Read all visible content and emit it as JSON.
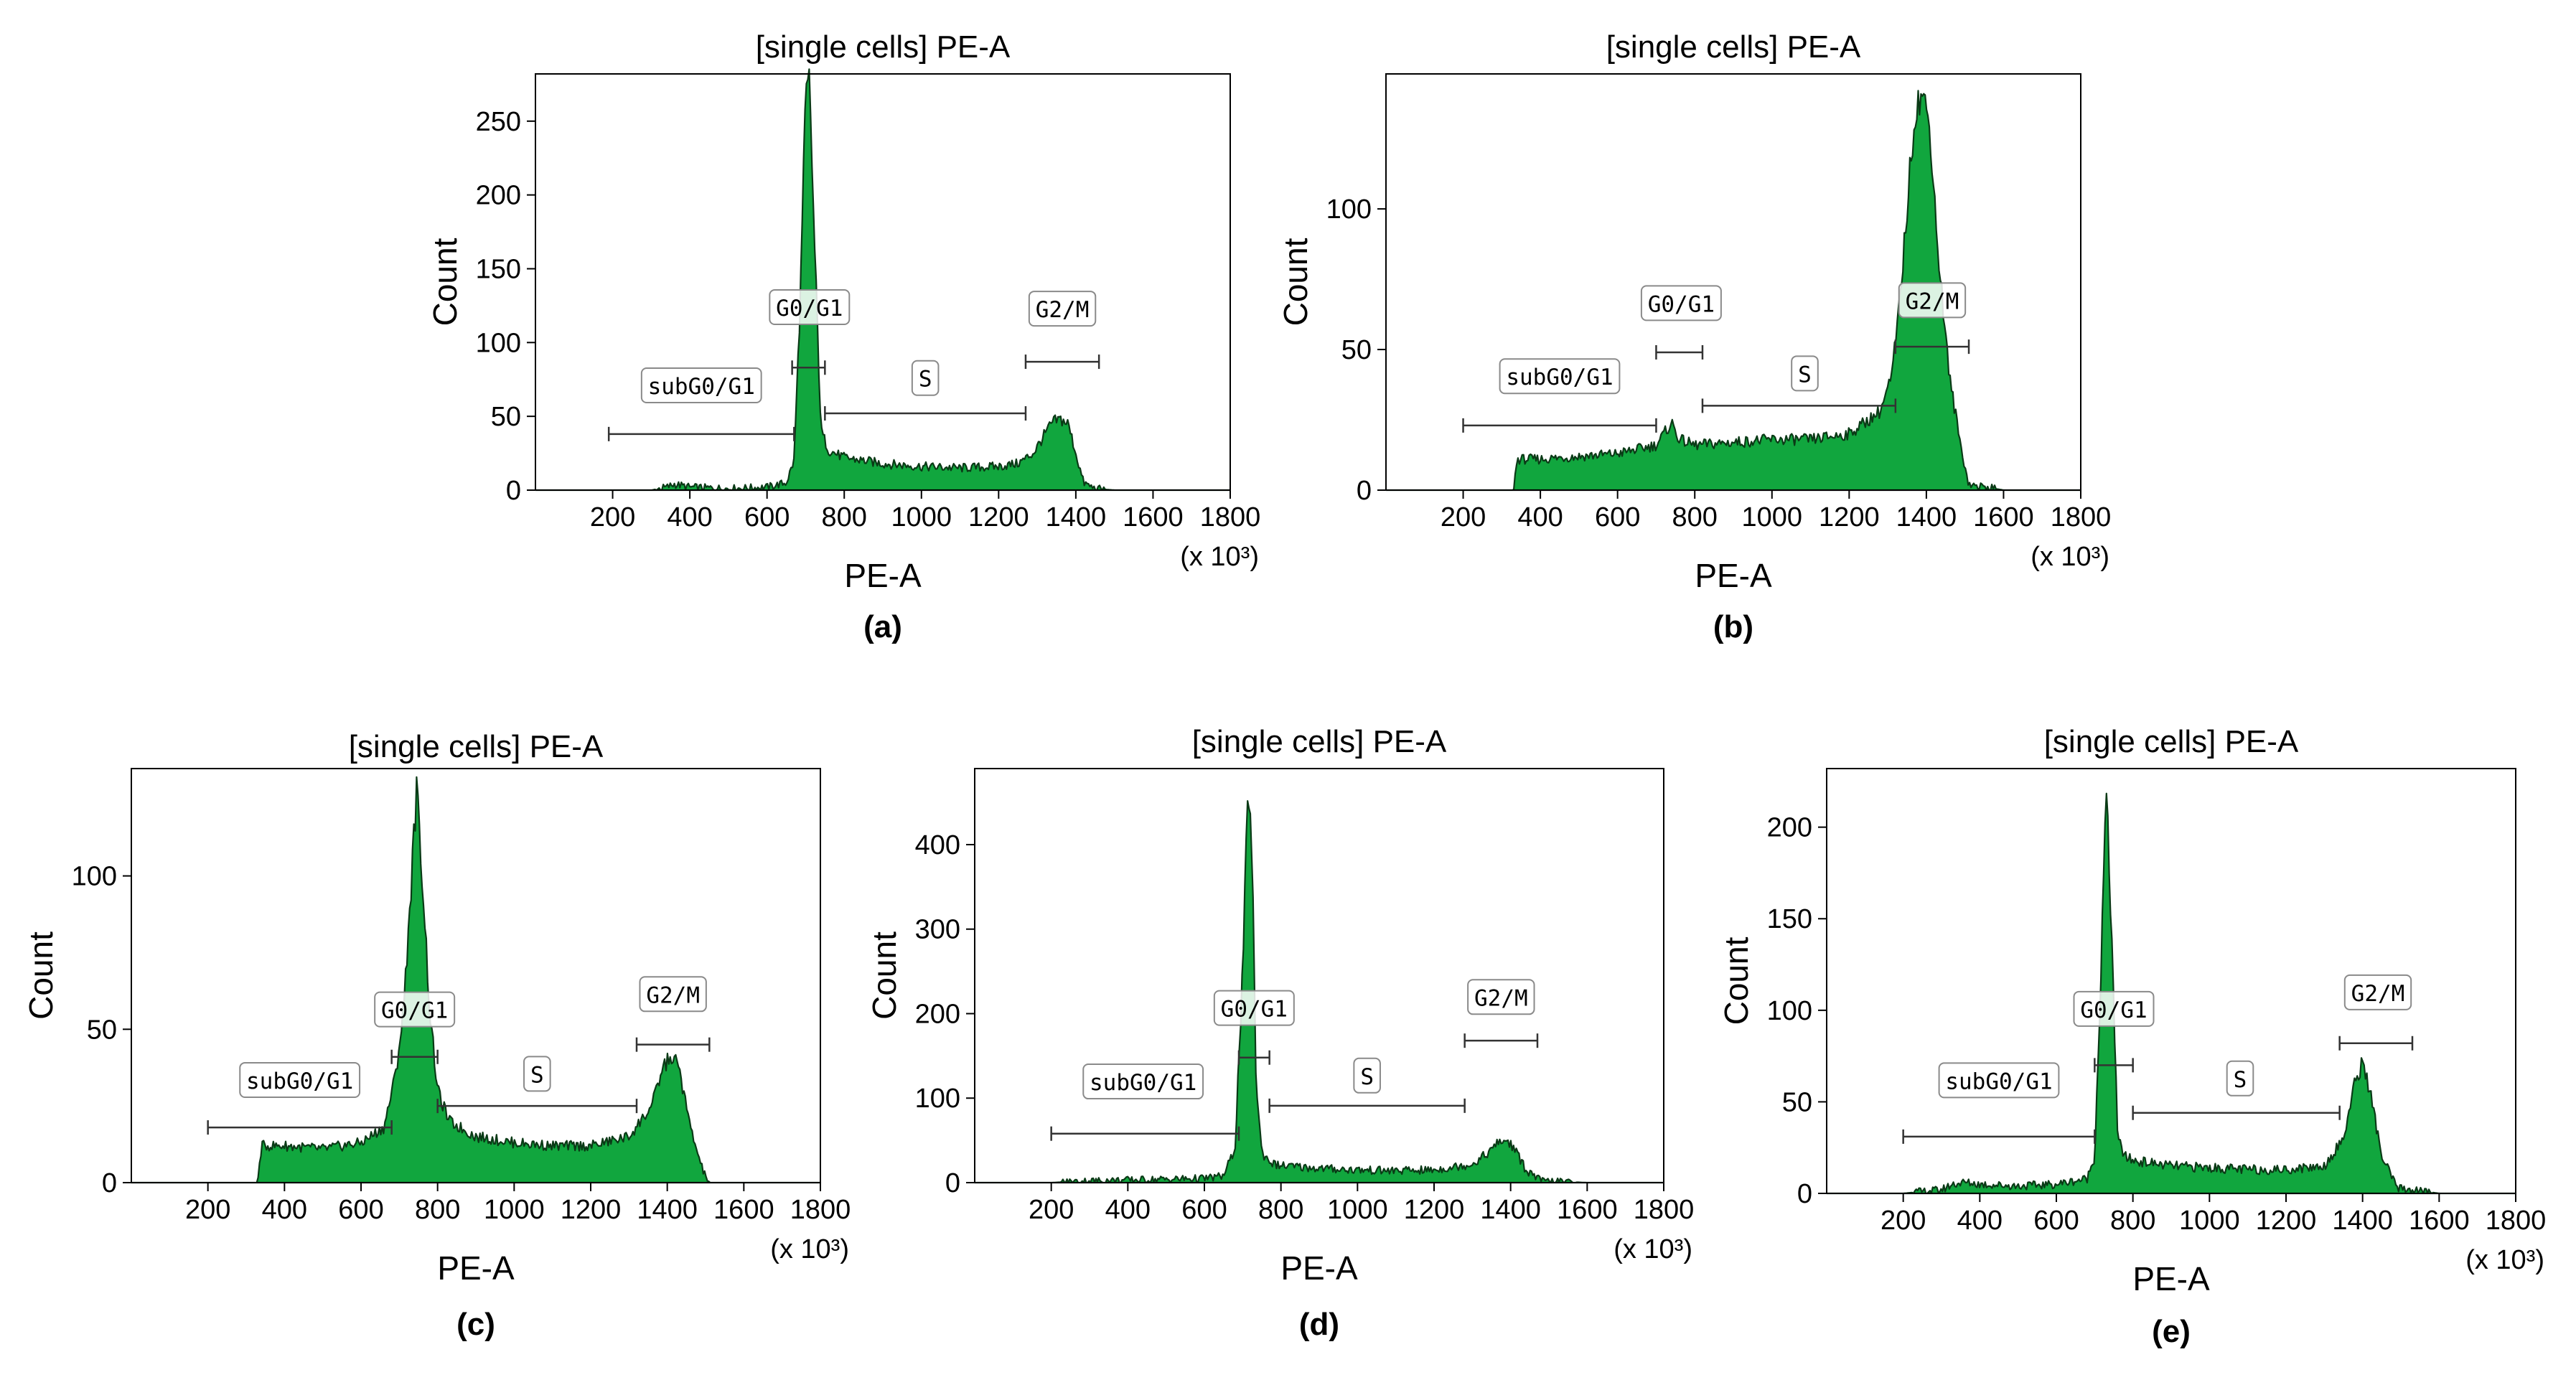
{
  "figure": {
    "panels": [
      {
        "letter": "(a)",
        "chart_data": {
          "type": "area",
          "title": "[single cells] PE-A",
          "xlabel": "PE-A",
          "ylabel": "Count",
          "x_multiplier": "(x 10³)",
          "xlim": [
            0,
            1800
          ],
          "ylim": [
            0,
            282
          ],
          "x_ticks": [
            200,
            400,
            600,
            800,
            1000,
            1200,
            1400,
            1600,
            1800
          ],
          "y_ticks": [
            0,
            50,
            100,
            150,
            200,
            250
          ],
          "fill_color": "#11a63e",
          "outline_color": "#0a3a16",
          "histogram": {
            "x": [
              0,
              100,
              200,
              300,
              340,
              360,
              380,
              400,
              500,
              600,
              650,
              670,
              685,
              700,
              710,
              720,
              740,
              760,
              800,
              900,
              1000,
              1100,
              1200,
              1250,
              1290,
              1320,
              1340,
              1360,
              1380,
              1400,
              1420,
              1450,
              1500,
              1600,
              1800
            ],
            "count": [
              0,
              0,
              0,
              0,
              2,
              4,
              3,
              2,
              1,
              2,
              5,
              20,
              120,
              265,
              278,
              190,
              40,
              27,
              22,
              18,
              16,
              15,
              16,
              18,
              25,
              38,
              46,
              48,
              45,
              25,
              5,
              1,
              0,
              0,
              0
            ]
          },
          "gates": [
            {
              "name": "subG0/G1",
              "x_start": 190,
              "x_end": 670,
              "y": 38,
              "label_x": 430,
              "label_y": 70
            },
            {
              "name": "G0/G1",
              "x_start": 665,
              "x_end": 750,
              "y": 83,
              "label_x": 710,
              "label_y": 123
            },
            {
              "name": "S",
              "x_start": 750,
              "x_end": 1270,
              "y": 52,
              "label_x": 1010,
              "label_y": 75
            },
            {
              "name": "G2/M",
              "x_start": 1270,
              "x_end": 1460,
              "y": 87,
              "label_x": 1365,
              "label_y": 122
            }
          ]
        }
      },
      {
        "letter": "(b)",
        "chart_data": {
          "type": "area",
          "title": "[single cells] PE-A",
          "xlabel": "PE-A",
          "ylabel": "Count",
          "x_multiplier": "(x 10³)",
          "xlim": [
            0,
            1800
          ],
          "ylim": [
            0,
            148
          ],
          "x_ticks": [
            200,
            400,
            600,
            800,
            1000,
            1200,
            1400,
            1600,
            1800
          ],
          "y_ticks": [
            0,
            50,
            100
          ],
          "fill_color": "#11a63e",
          "outline_color": "#0a3a16",
          "histogram": {
            "x": [
              0,
              200,
              300,
              330,
              340,
              400,
              500,
              600,
              700,
              740,
              760,
              800,
              900,
              1000,
              1100,
              1200,
              1280,
              1310,
              1330,
              1350,
              1370,
              1390,
              1410,
              1430,
              1460,
              1490,
              1510,
              1600,
              1800
            ],
            "count": [
              0,
              0,
              0,
              0,
              11,
              11,
              12,
              13,
              16,
              24,
              18,
              16,
              17,
              18,
              18,
              20,
              28,
              40,
              65,
              100,
              135,
              141,
              128,
              85,
              40,
              15,
              2,
              0,
              0
            ]
          },
          "gates": [
            {
              "name": "subG0/G1",
              "x_start": 200,
              "x_end": 700,
              "y": 23,
              "label_x": 450,
              "label_y": 40
            },
            {
              "name": "G0/G1",
              "x_start": 700,
              "x_end": 820,
              "y": 49,
              "label_x": 765,
              "label_y": 66
            },
            {
              "name": "S",
              "x_start": 820,
              "x_end": 1320,
              "y": 30,
              "label_x": 1085,
              "label_y": 41
            },
            {
              "name": "G2/M",
              "x_start": 1320,
              "x_end": 1510,
              "y": 51,
              "label_x": 1415,
              "label_y": 67
            }
          ]
        }
      },
      {
        "letter": "(c)",
        "chart_data": {
          "type": "area",
          "title": "[single cells] PE-A",
          "xlabel": "PE-A",
          "ylabel": "Count",
          "x_multiplier": "(x 10³)",
          "xlim": [
            0,
            1800
          ],
          "ylim": [
            0,
            135
          ],
          "x_ticks": [
            200,
            400,
            600,
            800,
            1000,
            1200,
            1400,
            1600,
            1800
          ],
          "y_ticks": [
            0,
            50,
            100
          ],
          "fill_color": "#11a63e",
          "outline_color": "#0a3a16",
          "histogram": {
            "x": [
              0,
              200,
              300,
              330,
              340,
              400,
              500,
              600,
              660,
              690,
              710,
              730,
              745,
              760,
              780,
              800,
              830,
              900,
              1000,
              1100,
              1200,
              1300,
              1360,
              1390,
              1410,
              1430,
              1460,
              1490,
              1510,
              1600,
              1800
            ],
            "count": [
              0,
              0,
              0,
              0,
              12,
              12,
              11,
              13,
              18,
              35,
              55,
              95,
              128,
              100,
              55,
              30,
              20,
              15,
              13,
              12,
              12,
              15,
              25,
              38,
              41,
              38,
              18,
              5,
              0,
              0,
              0
            ]
          },
          "gates": [
            {
              "name": "subG0/G1",
              "x_start": 200,
              "x_end": 680,
              "y": 18,
              "label_x": 440,
              "label_y": 33
            },
            {
              "name": "G0/G1",
              "x_start": 680,
              "x_end": 800,
              "y": 41,
              "label_x": 740,
              "label_y": 56
            },
            {
              "name": "S",
              "x_start": 800,
              "x_end": 1320,
              "y": 25,
              "label_x": 1060,
              "label_y": 35
            },
            {
              "name": "G2/M",
              "x_start": 1320,
              "x_end": 1510,
              "y": 45,
              "label_x": 1415,
              "label_y": 61
            }
          ]
        }
      },
      {
        "letter": "(d)",
        "chart_data": {
          "type": "area",
          "title": "[single cells] PE-A",
          "xlabel": "PE-A",
          "ylabel": "Count",
          "x_multiplier": "(x 10³)",
          "xlim": [
            0,
            1800
          ],
          "ylim": [
            0,
            490
          ],
          "x_ticks": [
            200,
            400,
            600,
            800,
            1000,
            1200,
            1400,
            1600,
            1800
          ],
          "y_ticks": [
            0,
            100,
            200,
            300,
            400
          ],
          "fill_color": "#11a63e",
          "outline_color": "#0a3a16",
          "histogram": {
            "x": [
              0,
              200,
              300,
              400,
              500,
              600,
              650,
              680,
              700,
              715,
              725,
              735,
              750,
              780,
              800,
              900,
              1000,
              1100,
              1200,
              1300,
              1340,
              1370,
              1390,
              1410,
              1440,
              1480,
              1600,
              1800
            ],
            "count": [
              0,
              0,
              2,
              3,
              4,
              5,
              8,
              40,
              250,
              475,
              380,
              120,
              35,
              22,
              20,
              17,
              15,
              14,
              15,
              22,
              35,
              48,
              50,
              40,
              15,
              2,
              0,
              0
            ]
          },
          "gates": [
            {
              "name": "subG0/G1",
              "x_start": 200,
              "x_end": 690,
              "y": 58,
              "label_x": 440,
              "label_y": 118
            },
            {
              "name": "G0/G1",
              "x_start": 690,
              "x_end": 770,
              "y": 148,
              "label_x": 730,
              "label_y": 205
            },
            {
              "name": "S",
              "x_start": 770,
              "x_end": 1280,
              "y": 91,
              "label_x": 1025,
              "label_y": 125
            },
            {
              "name": "G2/M",
              "x_start": 1280,
              "x_end": 1470,
              "y": 168,
              "label_x": 1375,
              "label_y": 218
            }
          ]
        }
      },
      {
        "letter": "(e)",
        "chart_data": {
          "type": "area",
          "title": "[single cells] PE-A",
          "xlabel": "PE-A",
          "ylabel": "Count",
          "x_multiplier": "(x 10³)",
          "xlim": [
            0,
            1800
          ],
          "ylim": [
            0,
            232
          ],
          "x_ticks": [
            200,
            400,
            600,
            800,
            1000,
            1200,
            1400,
            1600,
            1800
          ],
          "y_ticks": [
            0,
            50,
            100,
            150,
            200
          ],
          "fill_color": "#11a63e",
          "outline_color": "#0a3a16",
          "histogram": {
            "x": [
              0,
              200,
              300,
              330,
              360,
              400,
              500,
              600,
              680,
              700,
              715,
              730,
              745,
              760,
              780,
              800,
              900,
              1000,
              1100,
              1200,
              1300,
              1350,
              1380,
              1400,
              1420,
              1450,
              1490,
              1600,
              1800
            ],
            "count": [
              0,
              0,
              2,
              5,
              6,
              5,
              4,
              5,
              8,
              20,
              110,
              220,
              140,
              30,
              20,
              18,
              15,
              14,
              13,
              13,
              15,
              30,
              60,
              72,
              55,
              20,
              3,
              0,
              0
            ]
          },
          "gates": [
            {
              "name": "subG0/G1",
              "x_start": 200,
              "x_end": 700,
              "y": 31,
              "label_x": 450,
              "label_y": 61
            },
            {
              "name": "G0/G1",
              "x_start": 700,
              "x_end": 800,
              "y": 70,
              "label_x": 750,
              "label_y": 100
            },
            {
              "name": "S",
              "x_start": 800,
              "x_end": 1340,
              "y": 44,
              "label_x": 1080,
              "label_y": 62
            },
            {
              "name": "G2/M",
              "x_start": 1340,
              "x_end": 1530,
              "y": 82,
              "label_x": 1440,
              "label_y": 109
            }
          ]
        }
      }
    ]
  }
}
